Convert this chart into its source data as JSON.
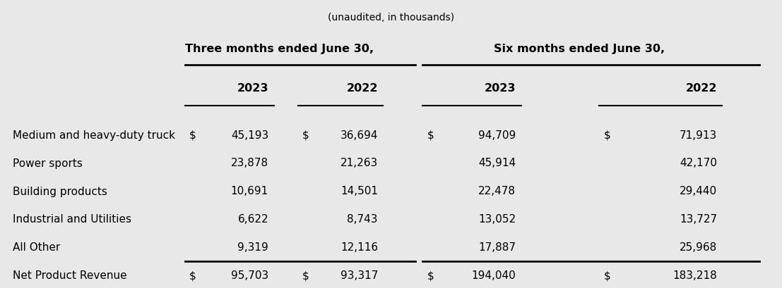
{
  "subtitle": "(unaudited, in thousands)",
  "col_groups": [
    {
      "label": "Three months ended June 30,"
    },
    {
      "label": "Six months ended June 30,"
    }
  ],
  "years": [
    "2023",
    "2022",
    "2023",
    "2022"
  ],
  "rows": [
    {
      "label": "Medium and heavy-duty truck",
      "values": [
        "45,193",
        "36,694",
        "94,709",
        "71,913"
      ],
      "show_dollar": true,
      "bold": false,
      "bottom_border": false,
      "double_bottom_border": false
    },
    {
      "label": "Power sports",
      "values": [
        "23,878",
        "21,263",
        "45,914",
        "42,170"
      ],
      "show_dollar": false,
      "bold": false,
      "bottom_border": false,
      "double_bottom_border": false
    },
    {
      "label": "Building products",
      "values": [
        "10,691",
        "14,501",
        "22,478",
        "29,440"
      ],
      "show_dollar": false,
      "bold": false,
      "bottom_border": false,
      "double_bottom_border": false
    },
    {
      "label": "Industrial and Utilities",
      "values": [
        "6,622",
        "8,743",
        "13,052",
        "13,727"
      ],
      "show_dollar": false,
      "bold": false,
      "bottom_border": false,
      "double_bottom_border": false
    },
    {
      "label": "All Other",
      "values": [
        "9,319",
        "12,116",
        "17,887",
        "25,968"
      ],
      "show_dollar": false,
      "bold": false,
      "bottom_border": true,
      "double_bottom_border": false
    },
    {
      "label": "Net Product Revenue",
      "values": [
        "95,703",
        "93,317",
        "194,040",
        "183,218"
      ],
      "show_dollar": true,
      "bold": false,
      "bottom_border": false,
      "double_bottom_border": true
    }
  ],
  "bg_color": "#e8e8e8",
  "text_color": "#000000",
  "font_size": 11,
  "header_font_size": 11.5
}
